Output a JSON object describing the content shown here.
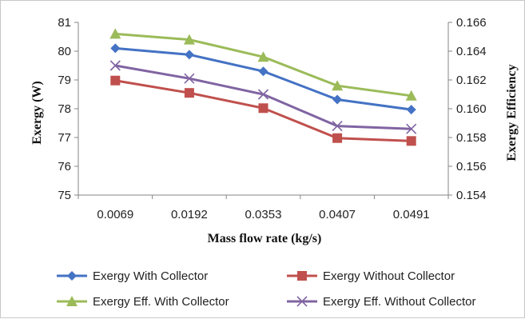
{
  "chart_data": {
    "type": "line",
    "categories": [
      "0.0069",
      "0.0192",
      "0.0353",
      "0.0407",
      "0.0491"
    ],
    "xlabel": "Mass flow rate (kg/s)",
    "ylabel_left": "Exergy (W)",
    "ylabel_right": "Exergy  Efficiency",
    "ylim_left": [
      75,
      81
    ],
    "yticks_left": [
      "75",
      "76",
      "77",
      "78",
      "79",
      "80",
      "81"
    ],
    "ylim_right": [
      0.154,
      0.166
    ],
    "yticks_right": [
      "0.154",
      "0.156",
      "0.158",
      "0.160",
      "0.162",
      "0.164",
      "0.166"
    ],
    "grid": false,
    "legend_position": "bottom",
    "series": [
      {
        "name": "Exergy With Collector",
        "axis": "left",
        "marker": "diamond",
        "color": "#4472C4",
        "values": [
          80.1,
          79.88,
          79.3,
          78.32,
          77.97
        ]
      },
      {
        "name": "Exergy Without Collector",
        "axis": "left",
        "marker": "square",
        "color": "#C0504D",
        "values": [
          78.98,
          78.55,
          78.02,
          76.98,
          76.88
        ]
      },
      {
        "name": "Exergy Eff. With Collector",
        "axis": "right",
        "marker": "triangle",
        "color": "#9BBB59",
        "values": [
          0.1652,
          0.1648,
          0.1636,
          0.1616,
          0.1609
        ]
      },
      {
        "name": "Exergy Eff. Without Collector",
        "axis": "right",
        "marker": "x",
        "color": "#8064A2",
        "values": [
          0.163,
          0.1621,
          0.161,
          0.1588,
          0.1586
        ]
      }
    ]
  }
}
